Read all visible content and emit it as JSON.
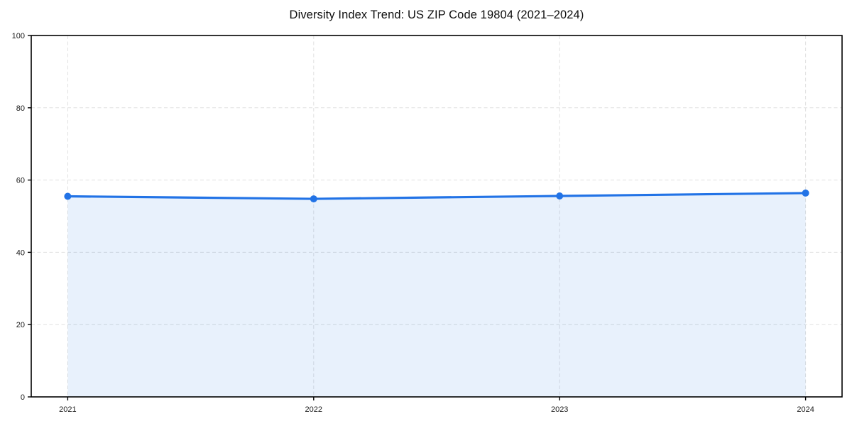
{
  "chart_data": {
    "type": "area",
    "title": "Diversity Index Trend: US ZIP Code 19804 (2021–2024)",
    "series_name": "Diversity Index",
    "categories": [
      "2021",
      "2022",
      "2023",
      "2024"
    ],
    "values": [
      55.5,
      54.8,
      55.6,
      56.4
    ],
    "xlabel": "",
    "ylabel": "",
    "ylim": [
      0,
      100
    ],
    "yticks": [
      0,
      20,
      40,
      60,
      80,
      100
    ],
    "grid": true,
    "grid_style": "dashed",
    "legend_position": "none",
    "line_color": "#2273e6",
    "marker_color": "#2273e6",
    "fill_color": "#2273e6",
    "fill_opacity": 0.1,
    "grid_color": "#e0e0e0",
    "axis_color": "#000000",
    "tick_label_color": "#1a1a1a",
    "background_color": "#ffffff",
    "marker": "circle"
  }
}
